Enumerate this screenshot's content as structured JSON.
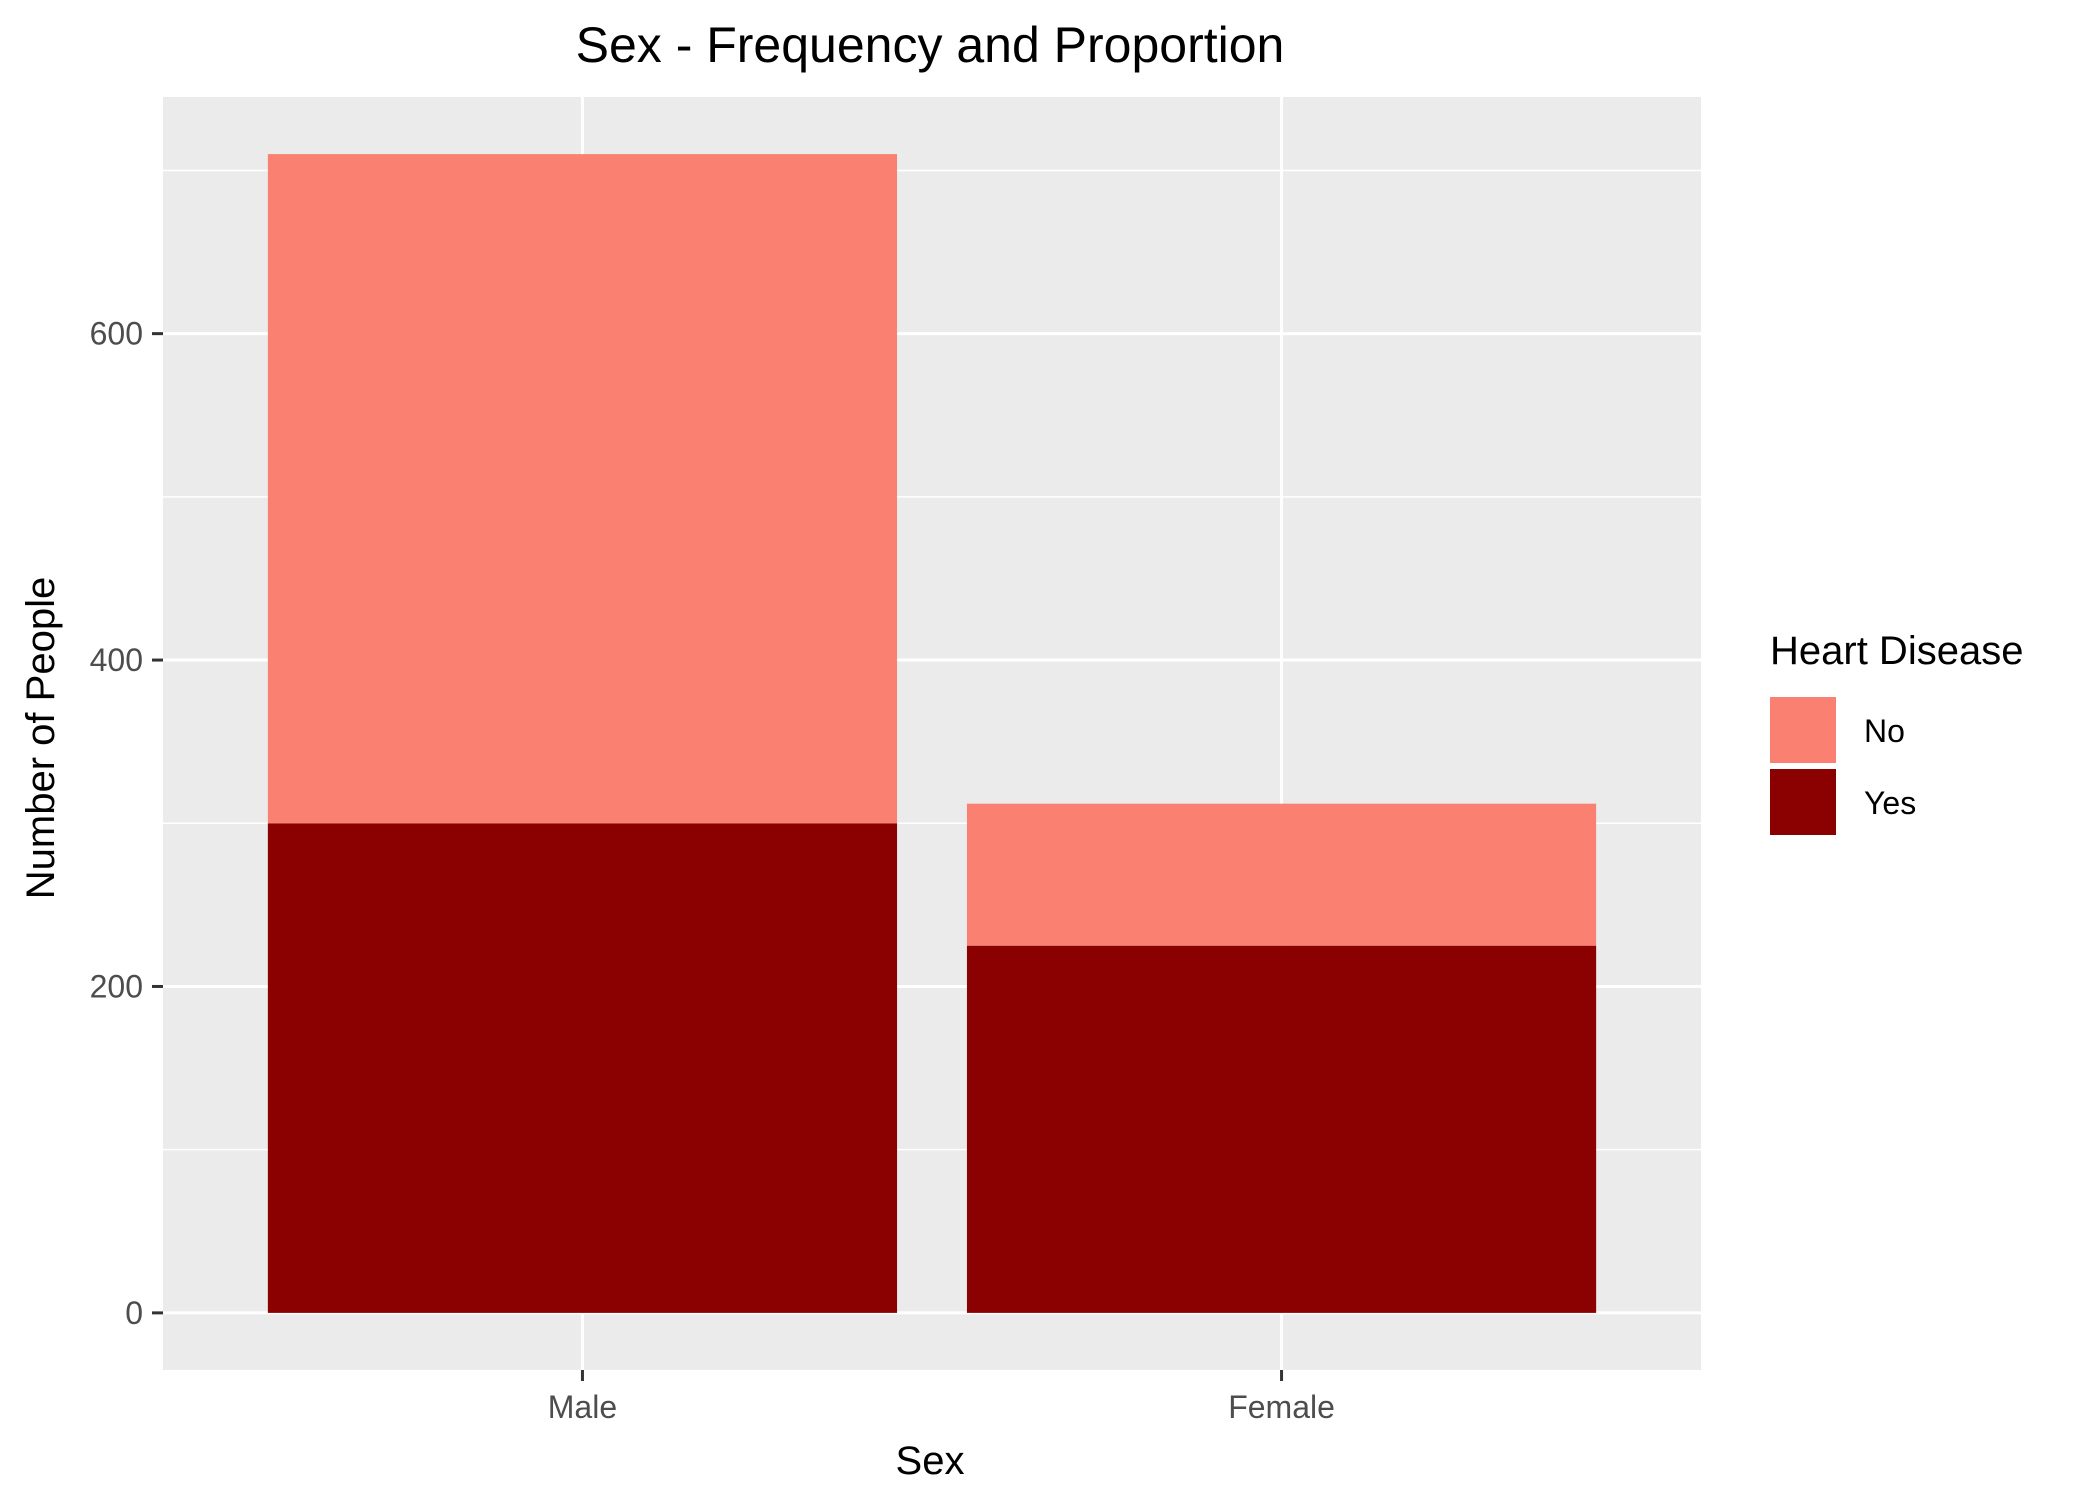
{
  "chart_data": {
    "type": "bar",
    "stacked": true,
    "title": "Sex - Frequency and Proportion",
    "xlabel": "Sex",
    "ylabel": "Number of People",
    "categories": [
      "Male",
      "Female"
    ],
    "series": [
      {
        "name": "Yes",
        "values": [
          300,
          225
        ],
        "color": "#8B0000"
      },
      {
        "name": "No",
        "values": [
          410,
          87
        ],
        "color": "#FA8072"
      }
    ],
    "totals": [
      710,
      312
    ],
    "ylim": [
      -35,
      745
    ],
    "yticks": [
      0,
      200,
      400,
      600
    ],
    "ytick_labels": [
      "0",
      "200",
      "400",
      "600"
    ],
    "grid": true,
    "panel_background": "#EBEBEB",
    "legend": {
      "title": "Heart Disease",
      "position": "right",
      "entries": [
        {
          "label": "No",
          "color": "#FA8072"
        },
        {
          "label": "Yes",
          "color": "#8B0000"
        }
      ]
    }
  }
}
